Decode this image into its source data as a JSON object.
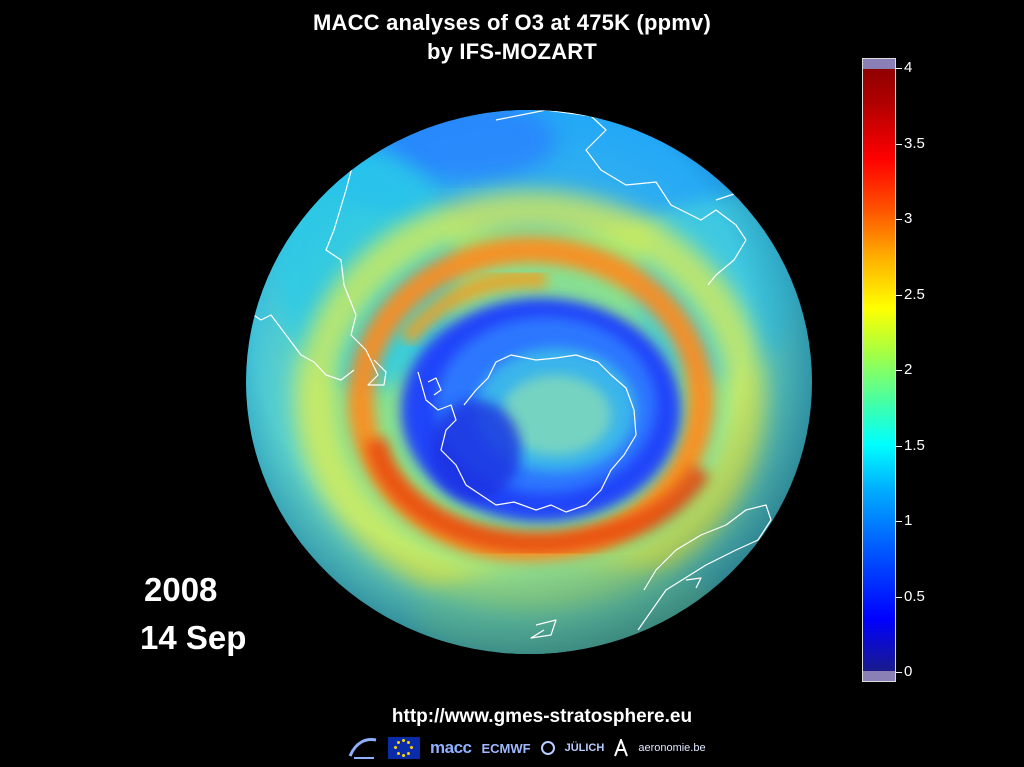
{
  "title": {
    "line1": "MACC analyses of O3 at 475K (ppmv)",
    "line2": "by IFS-MOZART"
  },
  "date": {
    "year": "2008",
    "day": "14 Sep"
  },
  "colorbar": {
    "ticks": [
      "4",
      "3.5",
      "3",
      "2.5",
      "2",
      "1.5",
      "1",
      "0.5",
      "0"
    ],
    "range": [
      0,
      4
    ]
  },
  "url": "http://www.gmes-stratosphere.eu",
  "logos": {
    "macc": "macc",
    "ecmwf": "ECMWF",
    "julich": "JÜLICH",
    "aeronomie": "aeronomie.be"
  }
}
